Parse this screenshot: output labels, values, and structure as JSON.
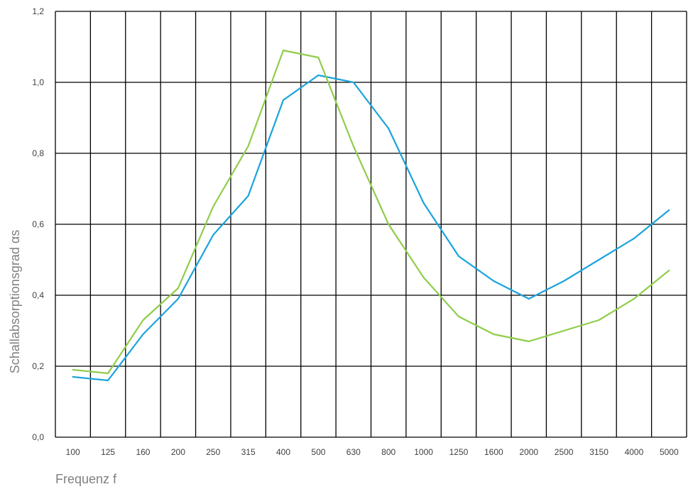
{
  "chart_data": {
    "type": "line",
    "categories": [
      "100",
      "125",
      "160",
      "200",
      "250",
      "315",
      "400",
      "500",
      "630",
      "800",
      "1000",
      "1250",
      "1600",
      "2000",
      "2500",
      "3150",
      "4000",
      "5000"
    ],
    "series": [
      {
        "color": "#1aa3dd",
        "values": [
          0.17,
          0.16,
          0.29,
          0.39,
          0.57,
          0.68,
          0.95,
          1.02,
          1.0,
          0.87,
          0.66,
          0.51,
          0.44,
          0.39,
          0.44,
          0.5,
          0.56,
          0.64
        ]
      },
      {
        "color": "#8fcd4a",
        "values": [
          0.19,
          0.18,
          0.33,
          0.42,
          0.65,
          0.82,
          1.09,
          1.07,
          0.82,
          0.6,
          0.45,
          0.34,
          0.29,
          0.27,
          0.3,
          0.33,
          0.39,
          0.47
        ]
      }
    ],
    "y_ticks": [
      "0,0",
      "0,2",
      "0,4",
      "0,6",
      "0,8",
      "1,0",
      "1,2"
    ],
    "ylim": [
      0,
      1.2
    ],
    "xlabel": "Frequenz f",
    "ylabel": "Schallabsorptionsgrad αs",
    "grid": true
  }
}
